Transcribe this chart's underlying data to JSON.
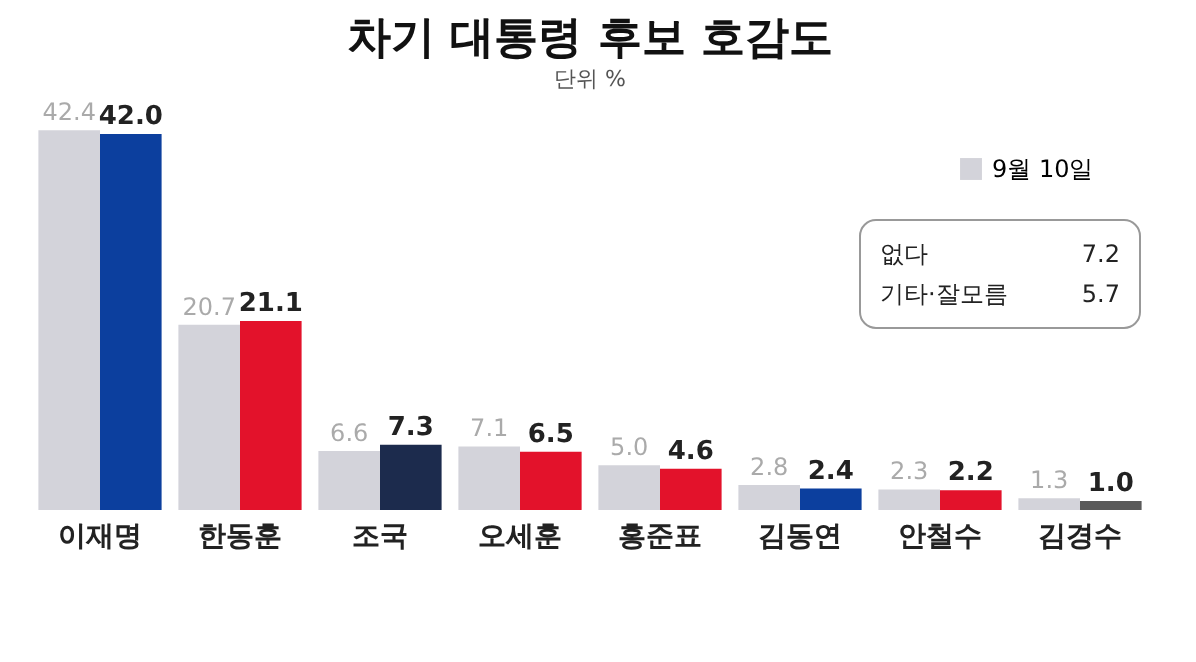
{
  "chart_data": {
    "type": "bar",
    "title": "차기 대통령 후보 호감도",
    "subtitle": "단위 %",
    "categories": [
      "이재명",
      "한동훈",
      "조국",
      "오세훈",
      "홍준표",
      "김동연",
      "안철수",
      "김경수"
    ],
    "series": [
      {
        "name": "9월 10일",
        "color": "#d3d3da",
        "values": [
          42.4,
          20.7,
          6.6,
          7.1,
          5.0,
          2.8,
          2.3,
          1.3
        ],
        "value_labels": [
          "42.4",
          "20.7",
          "6.6",
          "7.1",
          "5.0",
          "2.8",
          "2.3",
          "1.3"
        ]
      },
      {
        "colors": [
          "#0c3f9e",
          "#e3122b",
          "#1c2b4d",
          "#e3122b",
          "#e3122b",
          "#0c3f9e",
          "#e3122b",
          "#5a5a5a"
        ],
        "values": [
          42.0,
          21.1,
          7.3,
          6.5,
          4.6,
          2.4,
          2.2,
          1.0
        ],
        "value_labels": [
          "42.0",
          "21.1",
          "7.3",
          "6.5",
          "4.6",
          "2.4",
          "2.2",
          "1.0"
        ]
      }
    ],
    "annotations": [
      "없다 7.2",
      "기타·잘모름 5.7"
    ],
    "legend": "top right"
  }
}
